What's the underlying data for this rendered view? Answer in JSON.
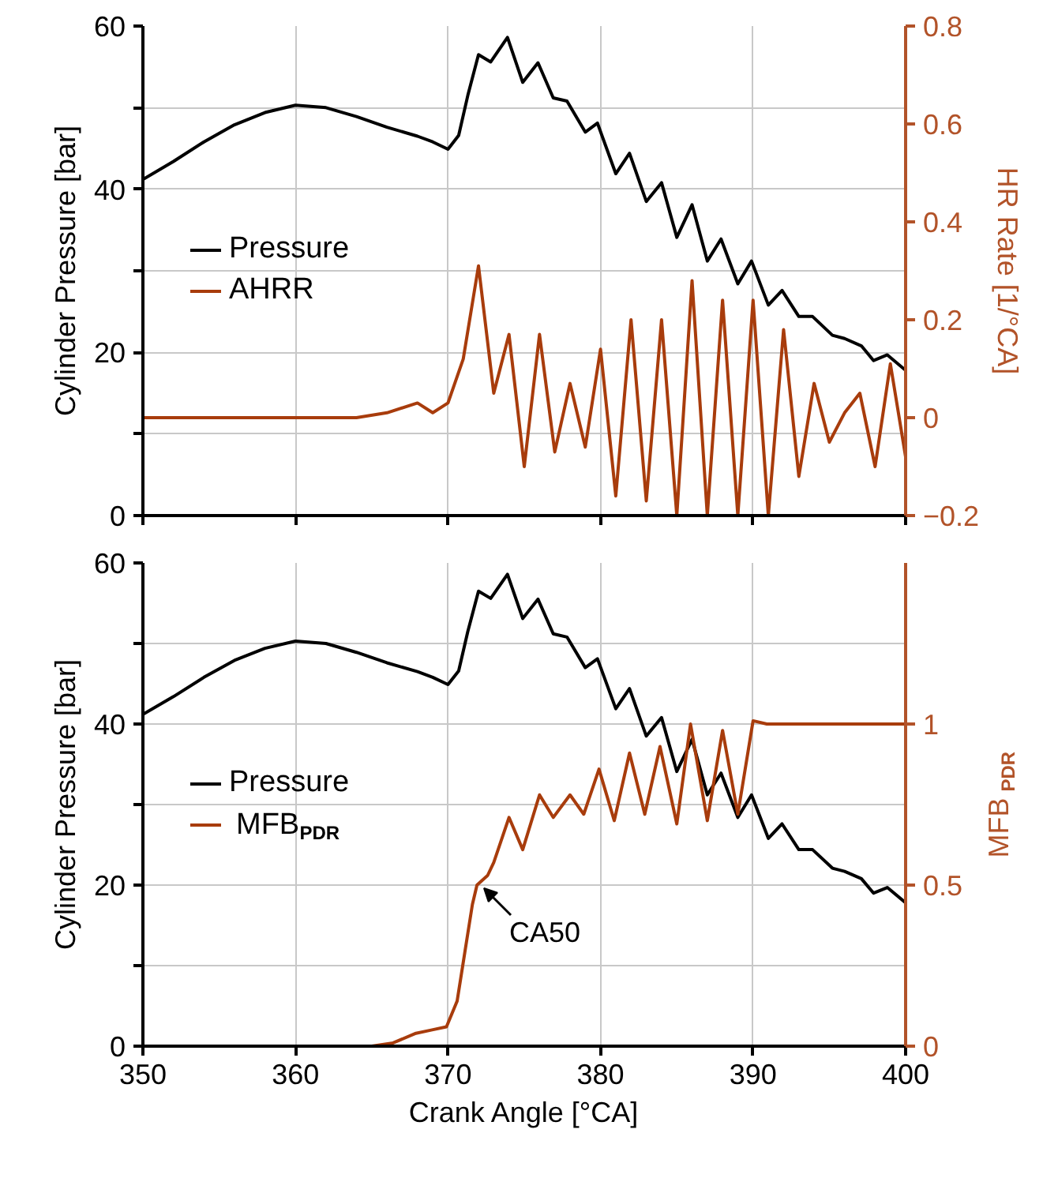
{
  "chart_data": [
    {
      "type": "line",
      "ylabel": "Cylinder Pressure [bar]",
      "y2label": "HR Rate [1/°CA]",
      "xlim": [
        350,
        400
      ],
      "xticks": [
        350,
        360,
        370,
        380,
        390,
        400
      ],
      "ylim": [
        0,
        60
      ],
      "yticks": [
        0,
        {
          "value": 10,
          "label": null
        },
        20,
        {
          "value": 30,
          "label": null
        },
        40,
        {
          "value": 50,
          "label": null
        },
        60
      ],
      "y2lim": [
        -0.2,
        0.8
      ],
      "y2ticks": [
        -0.2,
        0,
        0.2,
        0.4,
        0.6,
        0.8
      ],
      "grid": true,
      "legend": "left",
      "tick_labels": "y",
      "series": [
        {
          "name": "Pressure",
          "color": "#000000",
          "x": [
            350,
            352,
            354,
            356,
            358,
            360,
            362,
            364,
            366,
            368,
            369,
            370,
            370.7,
            371.3,
            372,
            372.8,
            373.9,
            374.9,
            375.9,
            376.9,
            377.8,
            379,
            379.8,
            381,
            381.9,
            383,
            384,
            385,
            386,
            387,
            387.9,
            389,
            389.9,
            391,
            391.9,
            393,
            393.9,
            395.2,
            396,
            397.1,
            397.9,
            398.8,
            400
          ],
          "values": [
            41.2,
            43.4,
            45.8,
            47.9,
            49.4,
            50.3,
            50.0,
            48.9,
            47.6,
            46.5,
            45.8,
            44.9,
            46.6,
            51.5,
            56.5,
            55.6,
            58.6,
            53.1,
            55.5,
            51.2,
            50.8,
            47.0,
            48.1,
            41.9,
            44.4,
            38.5,
            40.8,
            34.1,
            38.1,
            31.2,
            33.9,
            28.4,
            31.2,
            25.8,
            27.6,
            24.4,
            24.4,
            22.1,
            21.7,
            20.8,
            19.0,
            19.7,
            17.8
          ]
        },
        {
          "name": "AHRR",
          "color": "#a83c0c",
          "axis": "y2",
          "x": [
            350,
            362,
            364,
            366,
            368,
            369,
            370,
            371,
            372,
            373,
            374,
            375,
            376,
            377,
            378,
            379,
            380,
            381,
            382,
            383,
            384,
            385,
            386,
            387,
            388,
            389,
            390,
            391,
            392,
            393,
            394,
            395,
            396,
            397,
            398,
            399,
            400
          ],
          "values": [
            0,
            0,
            0,
            0.01,
            0.03,
            0.01,
            0.03,
            0.12,
            0.31,
            0.05,
            0.17,
            -0.1,
            0.17,
            -0.07,
            0.07,
            -0.06,
            0.14,
            -0.16,
            0.2,
            -0.17,
            0.2,
            -0.2,
            0.28,
            -0.2,
            0.24,
            -0.2,
            0.24,
            -0.2,
            0.18,
            -0.12,
            0.07,
            -0.05,
            0.01,
            0.05,
            -0.1,
            0.11,
            -0.08
          ]
        }
      ]
    },
    {
      "type": "line",
      "xlabel": "Crank Angle [°CA]",
      "ylabel": "Cylinder Pressure [bar]",
      "y2label": "MFB$_{PDR}$",
      "xlim": [
        350,
        400
      ],
      "xticks": [
        350,
        360,
        370,
        380,
        390,
        400
      ],
      "ylim": [
        0,
        60
      ],
      "yticks": [
        0,
        {
          "value": 10,
          "label": null
        },
        20,
        {
          "value": 30,
          "label": null
        },
        40,
        {
          "value": 50,
          "label": null
        },
        60
      ],
      "y2lim": [
        0,
        1.5
      ],
      "y2ticks": [
        0,
        0.5,
        1
      ],
      "grid": true,
      "legend": "left",
      "annotations": [
        "CA50"
      ],
      "series": [
        {
          "name": "Pressure",
          "color": "#000000",
          "x": [
            350,
            352,
            354,
            356,
            358,
            360,
            362,
            364,
            366,
            368,
            369,
            370,
            370.7,
            371.3,
            372,
            372.8,
            373.9,
            374.9,
            375.9,
            376.9,
            377.8,
            379,
            379.8,
            381,
            381.9,
            383,
            384,
            385,
            386,
            387,
            387.9,
            389,
            389.9,
            391,
            391.9,
            393,
            393.9,
            395.2,
            396,
            397.1,
            397.9,
            398.8,
            400
          ],
          "values": [
            41.2,
            43.4,
            45.8,
            47.9,
            49.4,
            50.3,
            50.0,
            48.9,
            47.6,
            46.5,
            45.8,
            44.9,
            46.6,
            51.5,
            56.5,
            55.6,
            58.6,
            53.1,
            55.5,
            51.2,
            50.8,
            47.0,
            48.1,
            41.9,
            44.4,
            38.5,
            40.8,
            34.1,
            38.1,
            31.2,
            33.9,
            28.4,
            31.2,
            25.8,
            27.6,
            24.4,
            24.4,
            22.1,
            21.7,
            20.8,
            19.0,
            19.7,
            17.8
          ]
        },
        {
          "name": "MFB$_{PDR}$",
          "color": "#a83c0c",
          "axis": "y2",
          "x": [
            350,
            364,
            365,
            366.4,
            367.9,
            368.9,
            369.9,
            370.6,
            371.1,
            371.6,
            371.9,
            372.6,
            373,
            374,
            374.9,
            376,
            376.9,
            378,
            378.9,
            379.9,
            380.9,
            381.9,
            382.9,
            383.9,
            385,
            385.9,
            387,
            388,
            389,
            390,
            390.9,
            400
          ],
          "values": [
            0,
            0,
            0,
            0.01,
            0.04,
            0.05,
            0.06,
            0.14,
            0.29,
            0.44,
            0.5,
            0.53,
            0.57,
            0.71,
            0.61,
            0.78,
            0.71,
            0.78,
            0.72,
            0.86,
            0.7,
            0.91,
            0.72,
            0.93,
            0.69,
            1.0,
            0.7,
            0.98,
            0.72,
            1.01,
            1.0,
            1.0
          ]
        }
      ]
    }
  ]
}
